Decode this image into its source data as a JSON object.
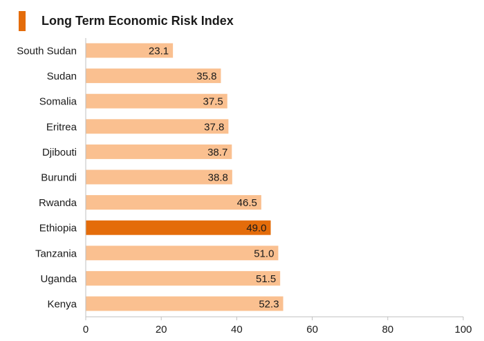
{
  "chart_data": {
    "type": "bar",
    "orientation": "horizontal",
    "title": "Long Term Economic Risk Index",
    "categories": [
      "South Sudan",
      "Sudan",
      "Somalia",
      "Eritrea",
      "Djibouti",
      "Burundi",
      "Rwanda",
      "Ethiopia",
      "Tanzania",
      "Uganda",
      "Kenya"
    ],
    "values": [
      23.1,
      35.8,
      37.5,
      37.8,
      38.7,
      38.8,
      46.5,
      49.0,
      51.0,
      51.5,
      52.3
    ],
    "value_labels": [
      "23.1",
      "35.8",
      "37.5",
      "37.8",
      "38.7",
      "38.8",
      "46.5",
      "49.0",
      "51.0",
      "51.5",
      "52.3"
    ],
    "highlighted_category": "Ethiopia",
    "xlim": [
      0,
      100
    ],
    "xticks": [
      0,
      20,
      40,
      60,
      80,
      100
    ],
    "xlabel": "",
    "ylabel": "",
    "grid": false,
    "legend": "none",
    "colors": {
      "bar": "#FAC090",
      "highlight": "#E46C0A",
      "title_accent": "#E46C0A",
      "axis": "#bfbfbf"
    }
  }
}
